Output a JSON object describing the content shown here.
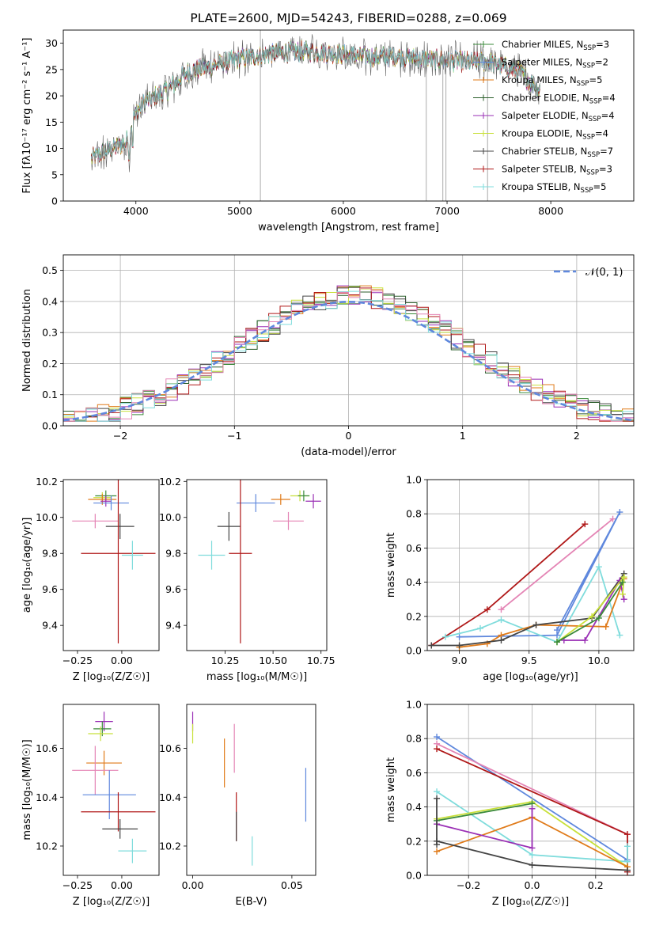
{
  "chart_data": [
    {
      "type": "line",
      "title": "PLATE=2600, MJD=54243, FIBERID=0288, z=0.069",
      "xlabel": "wavelength [Angstrom, rest frame]",
      "ylabel": "Flux [fλ10⁻¹⁷ erg cm⁻² s⁻¹ A⁻¹]",
      "xlim": [
        3300,
        8800
      ],
      "ylim": [
        0,
        32.5
      ],
      "xticks": [
        4000,
        5000,
        6000,
        7000,
        8000
      ],
      "yticks": [
        0,
        5,
        10,
        15,
        20,
        25,
        30
      ],
      "legend_position": "top-right",
      "series": [
        {
          "name": "Chabrier MILES, N_SSP=3",
          "color": "#3a8a3a"
        },
        {
          "name": "Salpeter MILES, N_SSP=2",
          "color": "#5f88dd"
        },
        {
          "name": "Kroupa MILES, N_SSP=5",
          "color": "#e07b1a"
        },
        {
          "name": "Chabrier ELODIE, N_SSP=4",
          "color": "#2b5e2b"
        },
        {
          "name": "Salpeter ELODIE, N_SSP=4",
          "color": "#9a2fb5"
        },
        {
          "name": "Kroupa ELODIE, N_SSP=4",
          "color": "#c8e03a"
        },
        {
          "name": "Chabrier STELIB, N_SSP=7",
          "color": "#444444"
        },
        {
          "name": "Salpeter STELIB, N_SSP=3",
          "color": "#b01818"
        },
        {
          "name": "Kroupa STELIB, N_SSP=5",
          "color": "#7fdcdc"
        }
      ],
      "spectrum_profile": {
        "x": [
          3570,
          3700,
          3900,
          4000,
          4100,
          4300,
          4500,
          4800,
          5000,
          5300,
          5600,
          5900,
          6200,
          6500,
          6800,
          7100,
          7400,
          7700,
          7900
        ],
        "y": [
          8,
          9.5,
          11,
          17,
          19,
          21,
          24.5,
          26,
          27,
          28,
          28.5,
          28,
          27.5,
          27.5,
          27,
          26.5,
          26.5,
          24.5,
          21
        ]
      }
    },
    {
      "type": "line",
      "xlabel": "(data-model)/error",
      "ylabel": "Normed distribution",
      "xlim": [
        -2.5,
        2.5
      ],
      "ylim": [
        0,
        0.55
      ],
      "xticks": [
        -2,
        -1,
        0,
        1,
        2
      ],
      "yticks": [
        0.0,
        0.1,
        0.2,
        0.3,
        0.4,
        0.5
      ],
      "grid": true,
      "legend_position": "top-right",
      "reference_curve": {
        "name": "𝒩(0, 1)",
        "color": "#5f88dd",
        "mean": 0,
        "sigma": 1
      },
      "histogram_bin_width": 0.1,
      "histogram_colors": [
        "#3a8a3a",
        "#e07b1a",
        "#2b5e2b",
        "#9a2fb5",
        "#c8e03a",
        "#444444",
        "#b01818",
        "#7fdcdc",
        "#e485b5"
      ]
    },
    {
      "type": "scatter",
      "xlabel": "Z [log₁₀(Z/Z☉)]",
      "ylabel": "age  [log₁₀(age/yr)]",
      "xlim": [
        -0.33,
        0.21
      ],
      "ylim": [
        9.26,
        10.21
      ],
      "xticks": [
        -0.25,
        0.0
      ],
      "yticks": [
        9.4,
        9.6,
        9.8,
        10.0,
        10.2
      ],
      "points": [
        {
          "x": -0.09,
          "xerr": 0.06,
          "y": 10.12,
          "yerr": 0.03,
          "color": "#3a8a3a"
        },
        {
          "x": -0.11,
          "xerr": 0.05,
          "y": 10.11,
          "yerr": 0.03,
          "color": "#c8e03a"
        },
        {
          "x": -0.11,
          "xerr": 0.08,
          "y": 10.1,
          "yerr": 0.03,
          "color": "#e07b1a"
        },
        {
          "x": -0.09,
          "xerr": 0.03,
          "y": 10.09,
          "yerr": 0.03,
          "color": "#9a2fb5"
        },
        {
          "x": -0.06,
          "xerr": 0.1,
          "y": 10.08,
          "yerr": 0.04,
          "color": "#5f88dd"
        },
        {
          "x": -0.15,
          "xerr": 0.13,
          "y": 9.98,
          "yerr": 0.04,
          "color": "#e485b5"
        },
        {
          "x": -0.01,
          "xerr": 0.08,
          "y": 9.95,
          "yerr": 0.07,
          "color": "#444444"
        },
        {
          "x": -0.02,
          "xerr": 0.21,
          "y": 9.8,
          "yerr": 0.5,
          "color": "#b01818"
        },
        {
          "x": 0.06,
          "xerr": 0.06,
          "y": 9.79,
          "yerr": 0.08,
          "color": "#7fdcdc"
        }
      ]
    },
    {
      "type": "scatter",
      "xlabel": "mass [log₁₀(M/M☉)]",
      "xlim": [
        10.05,
        10.78
      ],
      "ylim": [
        9.26,
        10.21
      ],
      "xticks": [
        10.25,
        10.5,
        10.75
      ],
      "yticks": [
        9.4,
        9.6,
        9.8,
        10.0,
        10.2
      ],
      "points": [
        {
          "x": 10.64,
          "xerr": 0.05,
          "y": 10.12,
          "yerr": 0.03,
          "color": "#c8e03a"
        },
        {
          "x": 10.66,
          "xerr": 0.03,
          "y": 10.12,
          "yerr": 0.03,
          "color": "#3a8a3a"
        },
        {
          "x": 10.54,
          "xerr": 0.05,
          "y": 10.1,
          "yerr": 0.03,
          "color": "#e07b1a"
        },
        {
          "x": 10.71,
          "xerr": 0.04,
          "y": 10.09,
          "yerr": 0.04,
          "color": "#9a2fb5"
        },
        {
          "x": 10.41,
          "xerr": 0.1,
          "y": 10.08,
          "yerr": 0.05,
          "color": "#5f88dd"
        },
        {
          "x": 10.58,
          "xerr": 0.08,
          "y": 9.98,
          "yerr": 0.05,
          "color": "#e485b5"
        },
        {
          "x": 10.27,
          "xerr": 0.06,
          "y": 9.95,
          "yerr": 0.08,
          "color": "#444444"
        },
        {
          "x": 10.33,
          "xerr": 0.06,
          "y": 9.8,
          "yerr": 0.5,
          "color": "#b01818"
        },
        {
          "x": 10.18,
          "xerr": 0.07,
          "y": 9.79,
          "yerr": 0.08,
          "color": "#7fdcdc"
        }
      ]
    },
    {
      "type": "line",
      "xlabel": "age  [log₁₀(age/yr)]",
      "ylabel": "mass weight",
      "xlim": [
        8.77,
        10.25
      ],
      "ylim": [
        0.0,
        1.0
      ],
      "xticks": [
        9.0,
        9.5,
        10.0
      ],
      "yticks": [
        0.0,
        0.2,
        0.4,
        0.6,
        0.8,
        1.0
      ],
      "grid": true,
      "series": [
        {
          "color": "#b01818",
          "x": [
            8.8,
            9.2,
            9.9
          ],
          "y": [
            0.03,
            0.24,
            0.74
          ]
        },
        {
          "color": "#e485b5",
          "x": [
            9.3,
            10.1
          ],
          "y": [
            0.24,
            0.77
          ]
        },
        {
          "color": "#5f88dd",
          "x": [
            9.0,
            9.7,
            10.15,
            9.7
          ],
          "y": [
            0.08,
            0.09,
            0.81,
            0.12
          ]
        },
        {
          "color": "#7fdcdc",
          "x": [
            8.9,
            9.15,
            9.3,
            9.7,
            10.0,
            10.15
          ],
          "y": [
            0.08,
            0.13,
            0.18,
            0.05,
            0.49,
            0.09
          ]
        },
        {
          "color": "#e07b1a",
          "x": [
            9.0,
            9.2,
            9.3,
            9.55,
            10.05,
            10.18
          ],
          "y": [
            0.02,
            0.04,
            0.09,
            0.15,
            0.14,
            0.42
          ]
        },
        {
          "color": "#444444",
          "x": [
            8.8,
            9.0,
            9.3,
            9.55,
            9.95,
            10.18
          ],
          "y": [
            0.03,
            0.03,
            0.06,
            0.15,
            0.19,
            0.45
          ]
        },
        {
          "color": "#9a2fb5",
          "x": [
            9.75,
            9.9,
            10.15,
            10.18
          ],
          "y": [
            0.06,
            0.06,
            0.41,
            0.3
          ]
        },
        {
          "color": "#c8e03a",
          "x": [
            9.7,
            9.95,
            10.18,
            10.17
          ],
          "y": [
            0.05,
            0.2,
            0.43,
            0.33
          ]
        },
        {
          "color": "#3a8a3a",
          "x": [
            9.7,
            10.0,
            10.17
          ],
          "y": [
            0.05,
            0.19,
            0.4
          ]
        }
      ]
    },
    {
      "type": "scatter",
      "xlabel": "Z [log₁₀(Z/Z☉)]",
      "ylabel": "mass [log₁₀(M/M☉)]",
      "xlim": [
        -0.33,
        0.21
      ],
      "ylim": [
        10.08,
        10.78
      ],
      "xticks": [
        -0.25,
        0.0
      ],
      "yticks": [
        10.2,
        10.4,
        10.6
      ],
      "points": [
        {
          "x": -0.1,
          "xerr": 0.05,
          "y": 10.71,
          "yerr": 0.04,
          "color": "#9a2fb5"
        },
        {
          "x": -0.11,
          "xerr": 0.05,
          "y": 10.68,
          "yerr": 0.03,
          "color": "#3a8a3a"
        },
        {
          "x": -0.12,
          "xerr": 0.07,
          "y": 10.66,
          "yerr": 0.03,
          "color": "#c8e03a"
        },
        {
          "x": -0.1,
          "xerr": 0.1,
          "y": 10.54,
          "yerr": 0.05,
          "color": "#e07b1a"
        },
        {
          "x": -0.15,
          "xerr": 0.13,
          "y": 10.51,
          "yerr": 0.1,
          "color": "#e485b5"
        },
        {
          "x": -0.07,
          "xerr": 0.15,
          "y": 10.41,
          "yerr": 0.1,
          "color": "#5f88dd"
        },
        {
          "x": -0.02,
          "xerr": 0.21,
          "y": 10.34,
          "yerr": 0.08,
          "color": "#b01818"
        },
        {
          "x": -0.01,
          "xerr": 0.1,
          "y": 10.27,
          "yerr": 0.04,
          "color": "#444444"
        },
        {
          "x": 0.06,
          "xerr": 0.08,
          "y": 10.18,
          "yerr": 0.05,
          "color": "#7fdcdc"
        }
      ]
    },
    {
      "type": "scatter",
      "xlabel": "E(B-V)",
      "xlim": [
        -0.003,
        0.062
      ],
      "ylim": [
        10.08,
        10.78
      ],
      "xticks": [
        0.0,
        0.05
      ],
      "yticks": [
        10.2,
        10.4,
        10.6
      ],
      "points": [
        {
          "x": 0.0,
          "y": 10.71,
          "yerr": 0.04,
          "color": "#9a2fb5"
        },
        {
          "x": 0.0,
          "y": 10.66,
          "yerr": 0.04,
          "color": "#c8e03a"
        },
        {
          "x": 0.016,
          "y": 10.54,
          "yerr": 0.1,
          "color": "#e07b1a"
        },
        {
          "x": 0.021,
          "y": 10.6,
          "yerr": 0.1,
          "color": "#e485b5"
        },
        {
          "x": 0.022,
          "y": 10.32,
          "yerr": 0.1,
          "color": "#b01818"
        },
        {
          "x": 0.022,
          "y": 10.28,
          "yerr": 0.06,
          "color": "#444444"
        },
        {
          "x": 0.03,
          "y": 10.18,
          "yerr": 0.06,
          "color": "#7fdcdc"
        },
        {
          "x": 0.057,
          "y": 10.41,
          "yerr": 0.11,
          "color": "#5f88dd"
        }
      ]
    },
    {
      "type": "line",
      "xlabel": "Z [log₁₀(Z/Z☉)]",
      "ylabel": "mass weight",
      "xlim": [
        -0.33,
        0.32
      ],
      "ylim": [
        0.0,
        1.0
      ],
      "xticks": [
        -0.2,
        0.0,
        0.2
      ],
      "yticks": [
        0.0,
        0.2,
        0.4,
        0.6,
        0.8,
        1.0
      ],
      "grid": true,
      "series": [
        {
          "color": "#5f88dd",
          "x": [
            -0.3,
            0.3
          ],
          "y": [
            0.81,
            0.09
          ]
        },
        {
          "color": "#e485b5",
          "x": [
            -0.3,
            0.3
          ],
          "y": [
            0.77,
            0.24
          ]
        },
        {
          "color": "#b01818",
          "x": [
            -0.3,
            0.3,
            0.3
          ],
          "y": [
            0.74,
            0.24,
            0.02
          ]
        },
        {
          "color": "#7fdcdc",
          "x": [
            -0.3,
            0.0,
            0.3,
            0.3
          ],
          "y": [
            0.49,
            0.12,
            0.08,
            0.17
          ]
        },
        {
          "color": "#c8e03a",
          "x": [
            -0.3,
            0.0,
            0.3
          ],
          "y": [
            0.33,
            0.43,
            0.05
          ]
        },
        {
          "color": "#3a8a3a",
          "x": [
            -0.3,
            0.0
          ],
          "y": [
            0.32,
            0.42
          ]
        },
        {
          "color": "#e07b1a",
          "x": [
            -0.3,
            0.0,
            0.3
          ],
          "y": [
            0.14,
            0.34,
            0.05
          ]
        },
        {
          "color": "#9a2fb5",
          "x": [
            -0.3,
            0.0,
            0.0
          ],
          "y": [
            0.3,
            0.16,
            0.39
          ]
        },
        {
          "color": "#444444",
          "x": [
            -0.3,
            -0.3,
            -0.3,
            0.0,
            0.3
          ],
          "y": [
            0.45,
            0.18,
            0.2,
            0.06,
            0.03
          ]
        }
      ]
    }
  ]
}
